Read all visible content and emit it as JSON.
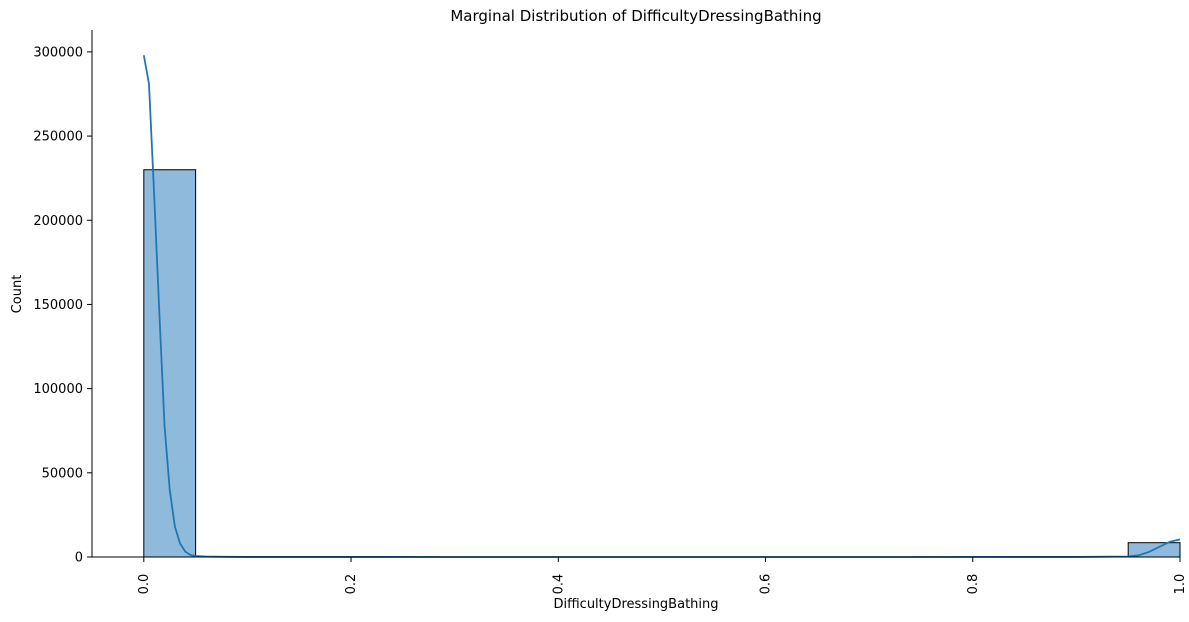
{
  "chart_data": {
    "type": "bar",
    "title": "Marginal Distribution of DifficultyDressingBathing",
    "xlabel": "DifficultyDressingBathing",
    "ylabel": "Count",
    "xlim": [
      -0.05,
      1.0
    ],
    "ylim": [
      0,
      313000
    ],
    "x_ticks": [
      0.0,
      0.2,
      0.4,
      0.6,
      0.8,
      1.0
    ],
    "x_tick_labels": [
      "0.0",
      "0.2",
      "0.4",
      "0.6",
      "0.8",
      "1.0"
    ],
    "y_ticks": [
      0,
      50000,
      100000,
      150000,
      200000,
      250000,
      300000
    ],
    "y_tick_labels": [
      "0",
      "50000",
      "100000",
      "150000",
      "200000",
      "250000",
      "300000"
    ],
    "bins": [
      {
        "x0": 0.0,
        "x1": 0.05,
        "count": 230000
      },
      {
        "x0": 0.05,
        "x1": 0.1,
        "count": 0
      },
      {
        "x0": 0.1,
        "x1": 0.15,
        "count": 0
      },
      {
        "x0": 0.15,
        "x1": 0.2,
        "count": 0
      },
      {
        "x0": 0.2,
        "x1": 0.25,
        "count": 0
      },
      {
        "x0": 0.25,
        "x1": 0.3,
        "count": 0
      },
      {
        "x0": 0.3,
        "x1": 0.35,
        "count": 0
      },
      {
        "x0": 0.35,
        "x1": 0.4,
        "count": 0
      },
      {
        "x0": 0.4,
        "x1": 0.45,
        "count": 0
      },
      {
        "x0": 0.45,
        "x1": 0.5,
        "count": 0
      },
      {
        "x0": 0.5,
        "x1": 0.55,
        "count": 0
      },
      {
        "x0": 0.55,
        "x1": 0.6,
        "count": 0
      },
      {
        "x0": 0.6,
        "x1": 0.65,
        "count": 0
      },
      {
        "x0": 0.65,
        "x1": 0.7,
        "count": 0
      },
      {
        "x0": 0.7,
        "x1": 0.75,
        "count": 0
      },
      {
        "x0": 0.75,
        "x1": 0.8,
        "count": 0
      },
      {
        "x0": 0.8,
        "x1": 0.85,
        "count": 0
      },
      {
        "x0": 0.85,
        "x1": 0.9,
        "count": 0
      },
      {
        "x0": 0.9,
        "x1": 0.95,
        "count": 0
      },
      {
        "x0": 0.95,
        "x1": 1.0,
        "count": 8500
      }
    ],
    "kde": {
      "x": [
        0.0,
        0.005,
        0.01,
        0.015,
        0.02,
        0.025,
        0.03,
        0.035,
        0.04,
        0.045,
        0.05,
        0.06,
        0.08,
        0.1,
        0.3,
        0.5,
        0.7,
        0.9,
        0.95,
        0.96,
        0.97,
        0.98,
        0.99,
        1.0
      ],
      "y": [
        298000,
        281000,
        215000,
        145000,
        78000,
        40000,
        18000,
        8000,
        3200,
        1200,
        600,
        250,
        100,
        50,
        20,
        20,
        20,
        50,
        300,
        1000,
        3000,
        6000,
        9000,
        10500
      ]
    },
    "colors": {
      "bar_fill": "#8fbadc",
      "bar_edge": "#000000",
      "kde_line": "#1f77b4"
    },
    "legend": "none",
    "grid": false
  }
}
